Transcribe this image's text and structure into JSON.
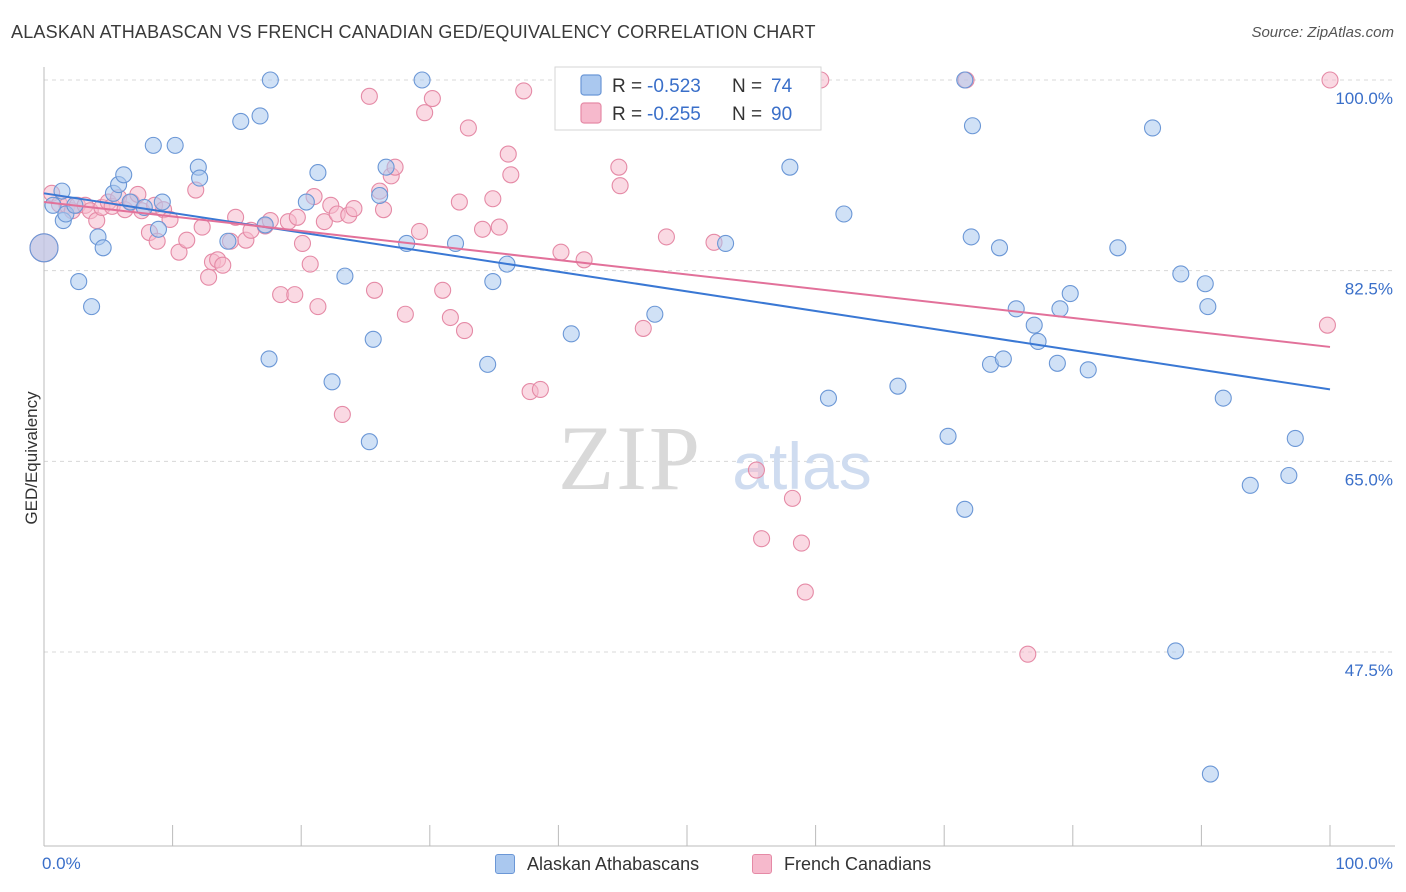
{
  "title": "ALASKAN ATHABASCAN VS FRENCH CANADIAN GED/EQUIVALENCY CORRELATION CHART",
  "source": "Source: ZipAtlas.com",
  "watermark": {
    "zip": "ZIP",
    "atlas": "atlas"
  },
  "colors": {
    "blue_fill": "#aac8ef",
    "blue_stroke": "#6b97d6",
    "blue_line": "#3a78d4",
    "pink_fill": "#f6b9cc",
    "pink_stroke": "#e58aa6",
    "pink_line": "#e2719a",
    "value_text": "#3a6fc9",
    "grid": "#d8d8d8",
    "axis": "#bbbbbb"
  },
  "stats": {
    "rows": [
      {
        "r_label": "R =",
        "r_value": "-0.523",
        "n_label": "N =",
        "n_value": "74"
      },
      {
        "r_label": "R =",
        "r_value": "-0.255",
        "n_label": "N =",
        "n_value": "90"
      }
    ]
  },
  "legend": {
    "series1": "Alaskan Athabascans",
    "series2": "French Canadians"
  },
  "chart_data": {
    "type": "scatter",
    "title": "ALASKAN ATHABASCAN VS FRENCH CANADIAN GED/EQUIVALENCY CORRELATION CHART",
    "xlabel": "",
    "ylabel": "GED/Equivalency",
    "xlim": [
      0,
      100
    ],
    "ylim": [
      29,
      101.5
    ],
    "x_tick_labels": [
      "0.0%",
      "100.0%"
    ],
    "y_ticks": [
      47.5,
      65.0,
      82.5,
      100.0
    ],
    "y_tick_labels": [
      "47.5%",
      "65.0%",
      "82.5%",
      "100.0%"
    ],
    "grid": true,
    "legend_position": "bottom",
    "series": [
      {
        "name": "Alaskan Athabascans",
        "trend": {
          "x": [
            0,
            100
          ],
          "y": [
            89.6,
            71.6
          ]
        },
        "points": [
          [
            0,
            84.6
          ],
          [
            0.7,
            88.5
          ],
          [
            1.4,
            89.8
          ],
          [
            1.5,
            87.1
          ],
          [
            1.7,
            87.7
          ],
          [
            2.4,
            88.5
          ],
          [
            2.7,
            81.5
          ],
          [
            3.7,
            79.2
          ],
          [
            4.2,
            85.6
          ],
          [
            4.6,
            84.6
          ],
          [
            5.4,
            89.6
          ],
          [
            5.8,
            90.4
          ],
          [
            6.2,
            91.3
          ],
          [
            6.7,
            88.8
          ],
          [
            7.8,
            88.3
          ],
          [
            8.5,
            94.0
          ],
          [
            8.9,
            86.3
          ],
          [
            9.2,
            88.8
          ],
          [
            10.2,
            94.0
          ],
          [
            12.0,
            92.0
          ],
          [
            12.1,
            91.0
          ],
          [
            14.3,
            85.2
          ],
          [
            15.3,
            96.2
          ],
          [
            16.8,
            96.7
          ],
          [
            17.2,
            86.7
          ],
          [
            17.5,
            74.4
          ],
          [
            17.6,
            100.0
          ],
          [
            20.4,
            88.8
          ],
          [
            21.3,
            91.5
          ],
          [
            22.4,
            72.3
          ],
          [
            23.4,
            82.0
          ],
          [
            25.3,
            66.8
          ],
          [
            25.6,
            76.2
          ],
          [
            26.1,
            89.4
          ],
          [
            26.6,
            92.0
          ],
          [
            28.2,
            85.0
          ],
          [
            29.4,
            100.0
          ],
          [
            32.0,
            85.0
          ],
          [
            34.5,
            73.9
          ],
          [
            34.9,
            81.5
          ],
          [
            36.0,
            83.1
          ],
          [
            41.0,
            76.7
          ],
          [
            47.5,
            78.5
          ],
          [
            53.0,
            85.0
          ],
          [
            58.0,
            92.0
          ],
          [
            61.0,
            70.8
          ],
          [
            62.2,
            87.7
          ],
          [
            66.4,
            71.9
          ],
          [
            70.3,
            67.3
          ],
          [
            71.6,
            60.6
          ],
          [
            72.1,
            85.6
          ],
          [
            71.6,
            100.0
          ],
          [
            72.2,
            95.8
          ],
          [
            73.6,
            73.9
          ],
          [
            74.6,
            74.4
          ],
          [
            74.3,
            84.6
          ],
          [
            75.6,
            79.0
          ],
          [
            77.0,
            77.5
          ],
          [
            77.3,
            76.0
          ],
          [
            78.8,
            74.0
          ],
          [
            79.0,
            79.0
          ],
          [
            79.8,
            80.4
          ],
          [
            81.2,
            73.4
          ],
          [
            83.5,
            84.6
          ],
          [
            86.2,
            95.6
          ],
          [
            88.4,
            82.2
          ],
          [
            88.0,
            47.6
          ],
          [
            90.5,
            79.2
          ],
          [
            90.3,
            81.3
          ],
          [
            90.7,
            36.3
          ],
          [
            91.7,
            70.8
          ],
          [
            93.8,
            62.8
          ],
          [
            96.8,
            63.7
          ],
          [
            97.3,
            67.1
          ]
        ]
      },
      {
        "name": "French Canadians",
        "trend": {
          "x": [
            0,
            100
          ],
          "y": [
            88.8,
            75.5
          ]
        },
        "points": [
          [
            0,
            84.6
          ],
          [
            0.6,
            89.6
          ],
          [
            1.2,
            88.6
          ],
          [
            1.8,
            88.5
          ],
          [
            2.2,
            88.0
          ],
          [
            2.6,
            88.5
          ],
          [
            3.2,
            88.5
          ],
          [
            3.6,
            88.0
          ],
          [
            4.1,
            87.1
          ],
          [
            4.5,
            88.3
          ],
          [
            5.0,
            88.8
          ],
          [
            5.3,
            88.4
          ],
          [
            5.8,
            89.2
          ],
          [
            6.3,
            88.1
          ],
          [
            6.8,
            88.8
          ],
          [
            7.3,
            89.5
          ],
          [
            7.6,
            88.0
          ],
          [
            8.2,
            86.0
          ],
          [
            8.8,
            85.2
          ],
          [
            8.6,
            88.5
          ],
          [
            9.3,
            88.1
          ],
          [
            9.8,
            87.2
          ],
          [
            10.5,
            84.2
          ],
          [
            11.1,
            85.3
          ],
          [
            11.8,
            89.9
          ],
          [
            12.3,
            86.5
          ],
          [
            12.8,
            81.9
          ],
          [
            13.1,
            83.3
          ],
          [
            13.5,
            83.5
          ],
          [
            13.9,
            83.0
          ],
          [
            14.5,
            85.2
          ],
          [
            14.9,
            87.4
          ],
          [
            15.7,
            85.3
          ],
          [
            16.1,
            86.2
          ],
          [
            17.2,
            86.6
          ],
          [
            17.6,
            87.1
          ],
          [
            18.4,
            80.3
          ],
          [
            19.0,
            87.0
          ],
          [
            19.5,
            80.3
          ],
          [
            19.7,
            87.4
          ],
          [
            20.1,
            85.0
          ],
          [
            20.7,
            83.1
          ],
          [
            21.0,
            89.3
          ],
          [
            21.3,
            79.2
          ],
          [
            21.8,
            87.0
          ],
          [
            22.3,
            88.5
          ],
          [
            22.8,
            87.7
          ],
          [
            23.2,
            69.3
          ],
          [
            23.7,
            87.6
          ],
          [
            24.1,
            88.2
          ],
          [
            25.3,
            98.5
          ],
          [
            25.7,
            80.7
          ],
          [
            26.1,
            89.8
          ],
          [
            26.4,
            88.1
          ],
          [
            27.0,
            91.2
          ],
          [
            27.3,
            92.0
          ],
          [
            28.1,
            78.5
          ],
          [
            29.2,
            86.1
          ],
          [
            29.6,
            97.0
          ],
          [
            30.2,
            98.3
          ],
          [
            31.0,
            80.7
          ],
          [
            31.6,
            78.2
          ],
          [
            32.3,
            88.8
          ],
          [
            32.7,
            77.0
          ],
          [
            33.0,
            95.6
          ],
          [
            34.1,
            86.3
          ],
          [
            34.9,
            89.1
          ],
          [
            35.4,
            86.5
          ],
          [
            36.1,
            93.2
          ],
          [
            36.3,
            91.3
          ],
          [
            37.3,
            99.0
          ],
          [
            37.8,
            71.4
          ],
          [
            38.6,
            71.6
          ],
          [
            40.2,
            84.2
          ],
          [
            42.0,
            83.5
          ],
          [
            44.7,
            92.0
          ],
          [
            44.8,
            90.3
          ],
          [
            46.6,
            77.2
          ],
          [
            48.4,
            85.6
          ],
          [
            52.1,
            85.1
          ],
          [
            55.4,
            64.2
          ],
          [
            55.8,
            57.9
          ],
          [
            58.2,
            61.6
          ],
          [
            58.9,
            57.5
          ],
          [
            59.2,
            53.0
          ],
          [
            60.4,
            100.0
          ],
          [
            71.7,
            100.0
          ],
          [
            76.5,
            47.3
          ],
          [
            100.0,
            100.0
          ],
          [
            99.8,
            77.5
          ]
        ]
      }
    ]
  }
}
